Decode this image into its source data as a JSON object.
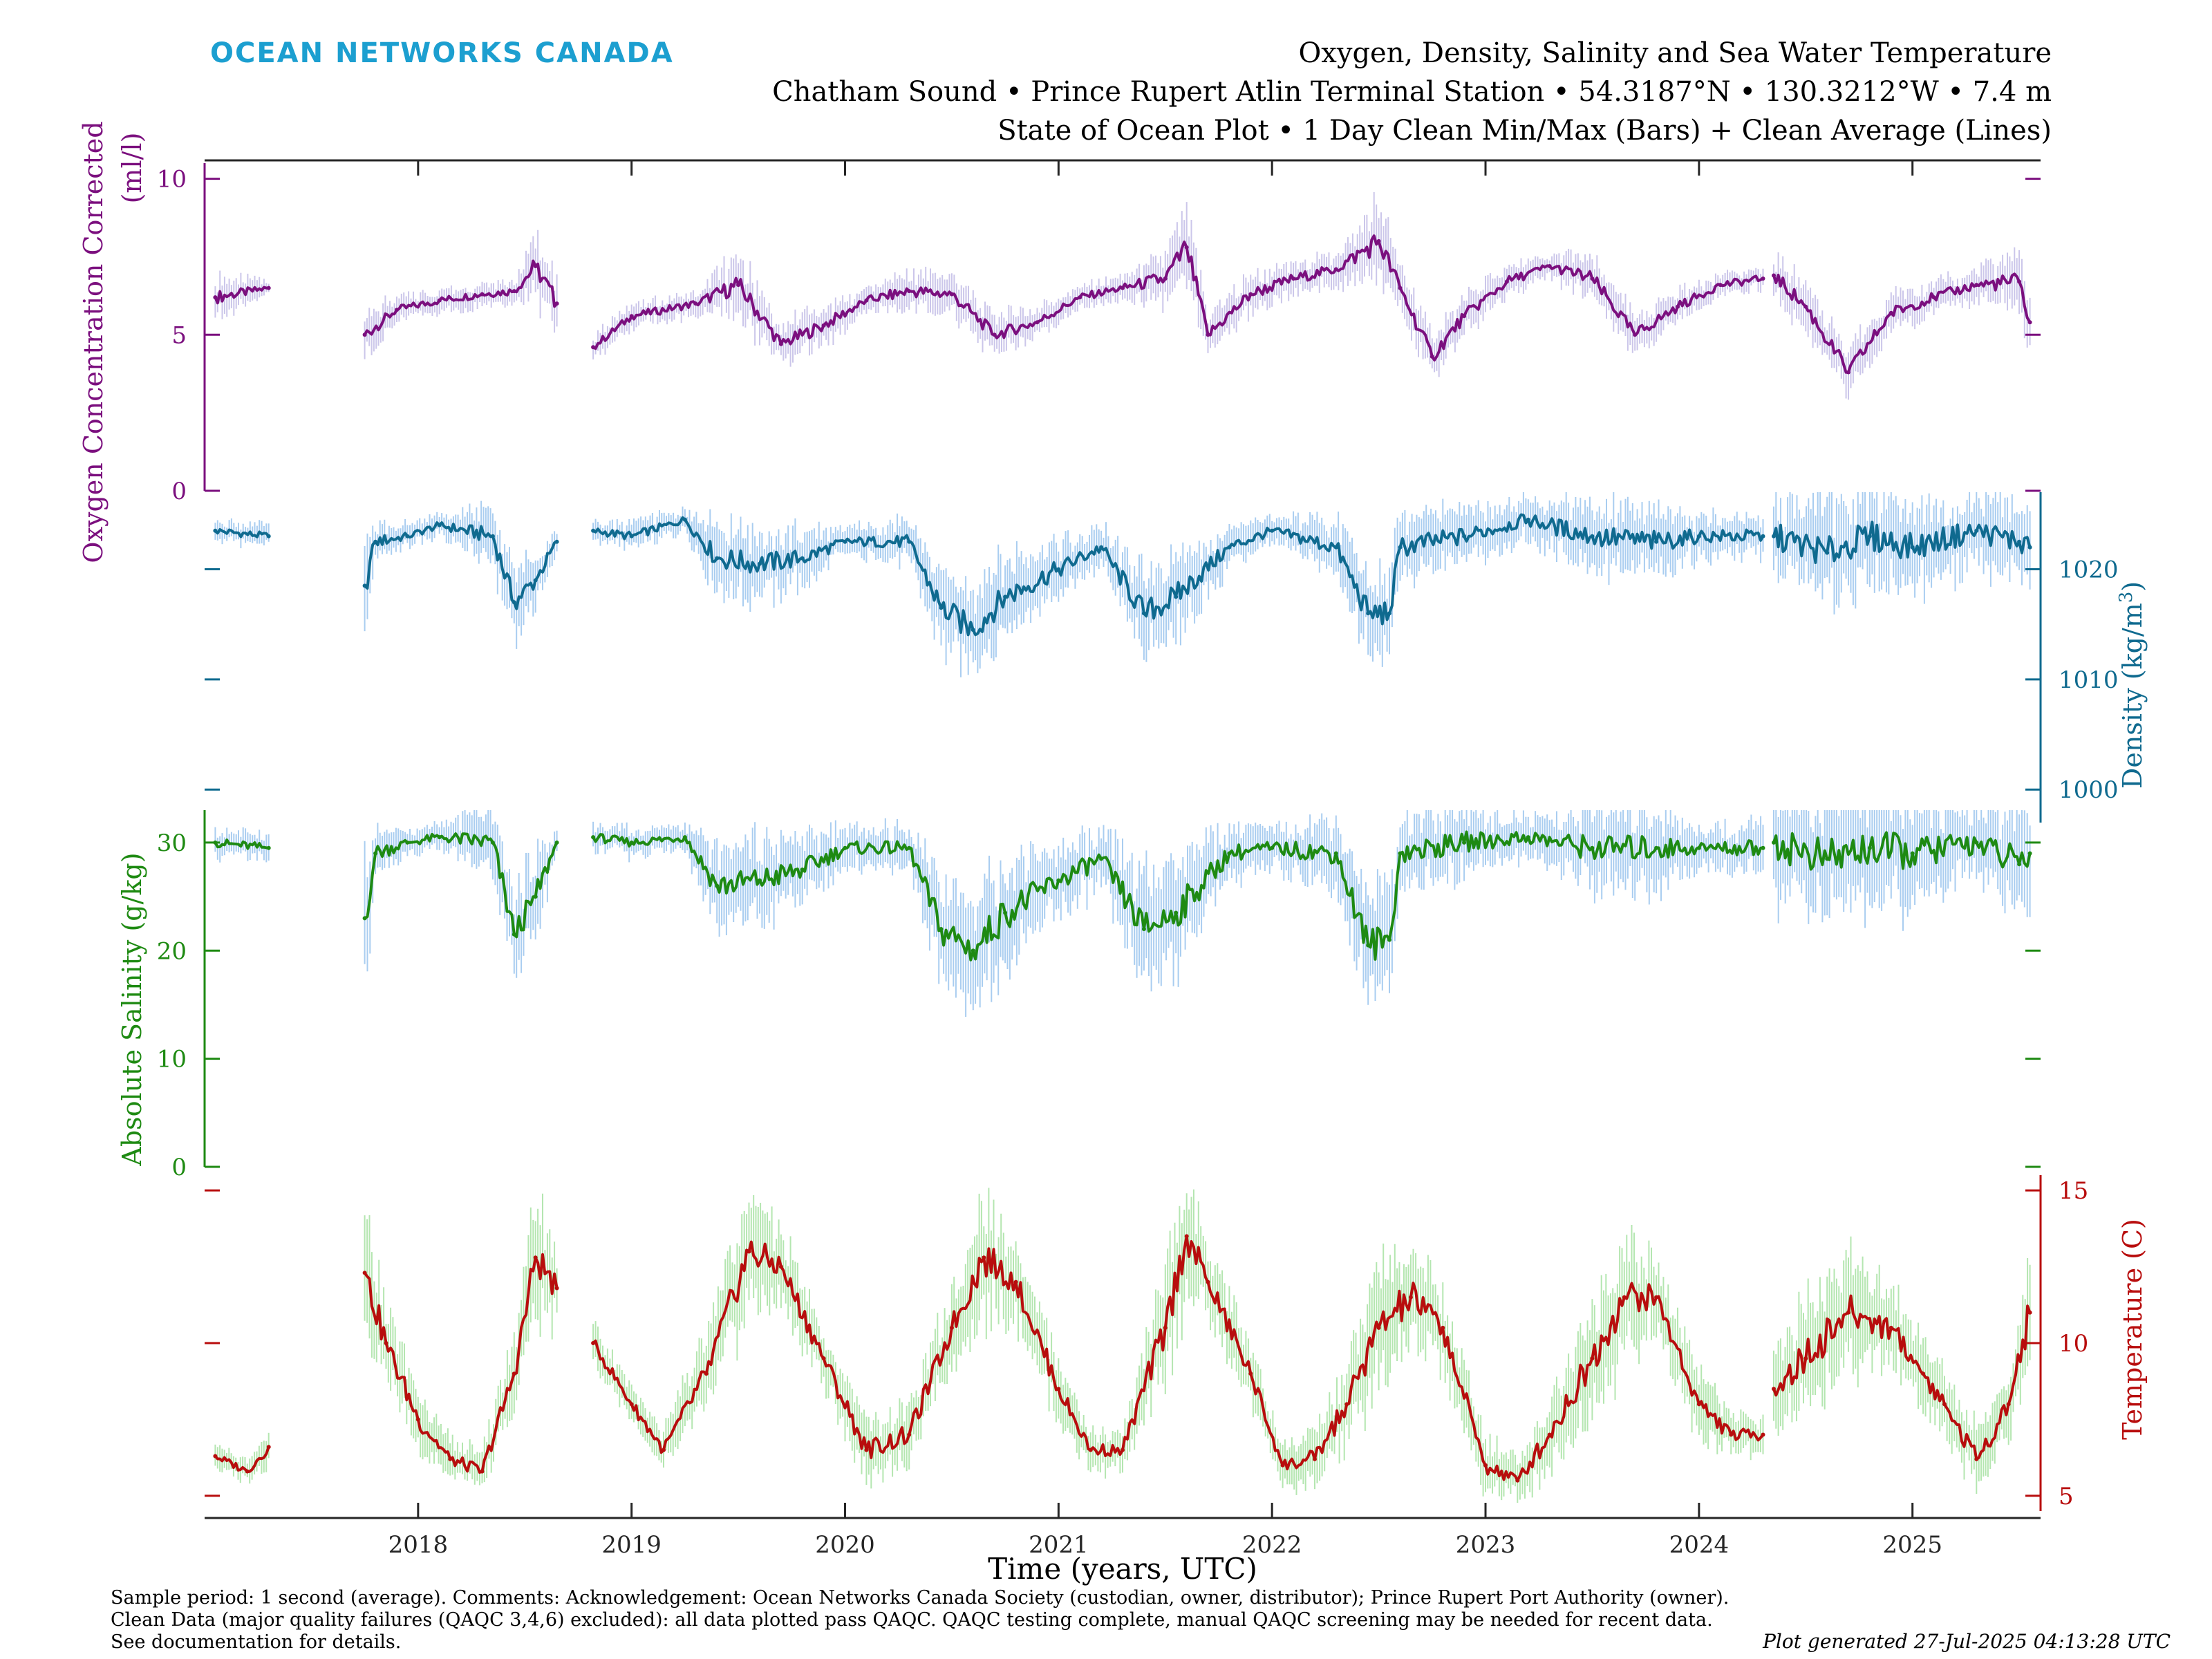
{
  "header": {
    "logo_text": "OCEAN NETWORKS CANADA",
    "title_line1": "Oxygen, Density, Salinity and Sea Water Temperature",
    "title_line2": "Chatham Sound • Prince Rupert Atlin Terminal Station • 54.3187°N • 130.3212°W • 7.4 m",
    "title_line3": "State of Ocean Plot • 1 Day Clean Min/Max (Bars) + Clean Average (Lines)"
  },
  "footer": {
    "note_line1": "Sample period: 1 second (average). Comments: Acknowledgement: Ocean Networks Canada Society (custodian, owner, distributor); Prince Rupert Port Authority (owner).",
    "note_line2": "Clean Data (major quality failures (QAQC 3,4,6) excluded): all data plotted pass QAQC. QAQC testing complete, manual QAQC screening may be needed for recent data.",
    "note_line3": "See documentation for details.",
    "generated": "Plot generated 27-Jul-2025 04:13:28 UTC"
  },
  "colors": {
    "oxygen": "#7b0f7e",
    "oxygen_band": "#cbc6ea",
    "density": "#0f6a8f",
    "density_band": "#a9cdf0",
    "salinity": "#1e8a12",
    "salinity_band": "#a9cdf0",
    "temperature": "#b80d0d",
    "temperature_band": "#b4e6b0"
  },
  "chart_data": {
    "type": "line",
    "xlabel": "Time (years, UTC)",
    "x_ticks": [
      "2018",
      "2019",
      "2020",
      "2021",
      "2022",
      "2023",
      "2024",
      "2025"
    ],
    "x_range": [
      2017.0,
      2025.6
    ],
    "gaps": [
      [
        2017.35,
        2017.75
      ],
      [
        2018.7,
        2018.82
      ],
      [
        2024.33,
        2024.35
      ]
    ],
    "series": [
      {
        "key": "oxygen",
        "name": "Oxygen Concentration Corrected",
        "ylabel": "Oxygen Concentration Corrected (ml/l)",
        "ylabel_line1": "Oxygen Concentration Corrected",
        "ylabel_line2": "(ml/l)",
        "axis": "left",
        "ylim": [
          0,
          10.5
        ],
        "ticks": [
          0,
          5,
          10
        ],
        "x": [
          2017.05,
          2017.3,
          2017.75,
          2017.9,
          2018.1,
          2018.3,
          2018.45,
          2018.55,
          2018.65,
          2018.82,
          2019.0,
          2019.3,
          2019.5,
          2019.7,
          2019.9,
          2020.1,
          2020.3,
          2020.5,
          2020.7,
          2020.9,
          2021.1,
          2021.3,
          2021.5,
          2021.6,
          2021.7,
          2021.9,
          2022.1,
          2022.3,
          2022.5,
          2022.6,
          2022.75,
          2022.9,
          2023.1,
          2023.3,
          2023.5,
          2023.7,
          2023.9,
          2024.1,
          2024.3,
          2024.35,
          2024.5,
          2024.7,
          2024.9,
          2025.1,
          2025.3,
          2025.5,
          2025.55
        ],
        "values": [
          6.2,
          6.5,
          5.0,
          5.8,
          6.1,
          6.3,
          6.4,
          7.2,
          6.0,
          4.6,
          5.6,
          6.0,
          6.6,
          4.7,
          5.3,
          6.1,
          6.4,
          6.3,
          5.0,
          5.4,
          6.2,
          6.5,
          6.8,
          7.8,
          5.0,
          6.3,
          6.8,
          7.1,
          8.0,
          6.5,
          4.3,
          5.6,
          6.7,
          7.2,
          6.8,
          5.0,
          5.9,
          6.6,
          6.8,
          6.9,
          5.9,
          3.8,
          5.7,
          6.2,
          6.6,
          6.7,
          5.4
        ],
        "band": [
          0.5,
          0.2,
          0.6,
          0.3,
          0.3,
          0.3,
          0.3,
          0.8,
          0.8,
          0.3,
          0.3,
          0.3,
          0.8,
          0.5,
          0.5,
          0.3,
          0.5,
          0.5,
          0.5,
          0.4,
          0.3,
          0.3,
          0.7,
          1.0,
          0.5,
          0.5,
          0.4,
          0.4,
          1.0,
          0.6,
          0.6,
          0.5,
          0.4,
          0.3,
          0.6,
          0.5,
          0.4,
          0.3,
          0.3,
          0.5,
          0.6,
          0.6,
          0.5,
          0.4,
          0.4,
          0.8,
          0.6
        ]
      },
      {
        "key": "density",
        "name": "Density",
        "ylabel": "Density (kg/m³)",
        "ylabel_main": "Density (kg/m",
        "ylabel_sup": "3",
        "ylabel_close": ")",
        "axis": "right",
        "ylim": [
          997,
          1027
        ],
        "ticks": [
          1000,
          1010,
          1020
        ],
        "x": [
          2017.05,
          2017.3,
          2017.75,
          2017.8,
          2017.95,
          2018.1,
          2018.35,
          2018.45,
          2018.55,
          2018.65,
          2018.82,
          2019.0,
          2019.25,
          2019.4,
          2019.6,
          2019.8,
          2020.0,
          2020.3,
          2020.45,
          2020.6,
          2020.75,
          2021.0,
          2021.2,
          2021.4,
          2021.55,
          2021.8,
          2022.0,
          2022.3,
          2022.45,
          2022.55,
          2022.6,
          2022.9,
          2023.2,
          2023.5,
          2023.8,
          2024.0,
          2024.3,
          2024.35,
          2024.6,
          2024.8,
          2025.0,
          2025.3,
          2025.5,
          2025.55
        ],
        "values": [
          1023.5,
          1023.0,
          1018.5,
          1022.5,
          1023.0,
          1024.0,
          1023.0,
          1017.0,
          1019.0,
          1022.5,
          1023.5,
          1023.0,
          1024.5,
          1021.0,
          1020.5,
          1021.0,
          1022.5,
          1022.5,
          1016.5,
          1014.5,
          1017.5,
          1020.0,
          1022.0,
          1016.0,
          1017.5,
          1022.0,
          1023.5,
          1022.0,
          1016.0,
          1016.0,
          1022.0,
          1023.0,
          1024.5,
          1023.0,
          1022.5,
          1023.0,
          1023.0,
          1023.0,
          1021.5,
          1023.0,
          1022.0,
          1023.5,
          1022.5,
          1022.0
        ],
        "band": [
          0.8,
          0.8,
          4.0,
          1.5,
          0.8,
          0.8,
          2.0,
          2.5,
          2.0,
          1.0,
          0.8,
          1.0,
          0.8,
          2.5,
          2.5,
          2.0,
          1.0,
          1.5,
          3.0,
          3.0,
          3.0,
          2.0,
          1.5,
          3.0,
          3.0,
          1.5,
          1.0,
          2.0,
          3.0,
          3.0,
          2.5,
          2.0,
          1.5,
          2.5,
          2.5,
          1.5,
          1.5,
          3.0,
          3.5,
          3.5,
          3.0,
          2.5,
          3.0,
          3.0
        ]
      },
      {
        "key": "salinity",
        "name": "Absolute Salinity",
        "ylabel": "Absolute Salinity (g/kg)",
        "axis": "left",
        "ylim": [
          0,
          33
        ],
        "ticks": [
          0,
          10,
          20,
          30
        ],
        "x": [
          2017.05,
          2017.3,
          2017.75,
          2017.8,
          2017.95,
          2018.1,
          2018.35,
          2018.45,
          2018.55,
          2018.65,
          2018.82,
          2019.0,
          2019.25,
          2019.4,
          2019.6,
          2019.8,
          2020.0,
          2020.3,
          2020.45,
          2020.6,
          2020.75,
          2021.0,
          2021.2,
          2021.4,
          2021.55,
          2021.8,
          2022.0,
          2022.3,
          2022.45,
          2022.55,
          2022.6,
          2022.9,
          2023.2,
          2023.5,
          2023.8,
          2024.0,
          2024.3,
          2024.35,
          2024.6,
          2024.8,
          2025.0,
          2025.3,
          2025.5,
          2025.55
        ],
        "values": [
          30.0,
          29.5,
          23.0,
          29.0,
          30.0,
          30.5,
          30.0,
          21.5,
          25.0,
          30.0,
          30.5,
          30.0,
          30.5,
          26.0,
          26.5,
          27.5,
          29.5,
          29.5,
          22.0,
          20.0,
          23.5,
          26.5,
          28.5,
          22.0,
          23.5,
          29.0,
          29.5,
          29.0,
          20.5,
          21.0,
          29.0,
          30.0,
          30.5,
          29.5,
          29.5,
          29.5,
          29.5,
          30.0,
          28.5,
          29.5,
          29.0,
          30.0,
          28.0,
          29.0
        ],
        "band": [
          1.0,
          1.0,
          5.0,
          2.0,
          1.0,
          1.0,
          2.5,
          3.0,
          3.0,
          1.0,
          1.0,
          1.0,
          1.0,
          3.0,
          3.0,
          2.5,
          1.5,
          1.5,
          4.0,
          4.0,
          4.0,
          2.5,
          2.0,
          4.0,
          4.0,
          2.0,
          1.5,
          2.5,
          4.0,
          4.0,
          2.5,
          2.5,
          1.5,
          3.0,
          3.0,
          1.5,
          2.0,
          4.0,
          4.5,
          4.5,
          4.0,
          2.5,
          4.0,
          4.0
        ]
      },
      {
        "key": "temperature",
        "name": "Temperature",
        "ylabel": "Temperature (C)",
        "axis": "right",
        "ylim": [
          4.5,
          15.5
        ],
        "ticks": [
          5,
          10,
          15
        ],
        "x": [
          2017.05,
          2017.2,
          2017.3,
          2017.75,
          2017.85,
          2018.0,
          2018.15,
          2018.3,
          2018.45,
          2018.55,
          2018.65,
          2018.82,
          2019.0,
          2019.15,
          2019.35,
          2019.55,
          2019.7,
          2019.9,
          2020.1,
          2020.3,
          2020.5,
          2020.65,
          2020.8,
          2021.0,
          2021.15,
          2021.3,
          2021.5,
          2021.6,
          2021.7,
          2021.9,
          2022.05,
          2022.2,
          2022.35,
          2022.5,
          2022.65,
          2022.8,
          2023.0,
          2023.15,
          2023.3,
          2023.5,
          2023.65,
          2023.8,
          2024.0,
          2024.15,
          2024.3,
          2024.35,
          2024.5,
          2024.7,
          2024.9,
          2025.05,
          2025.15,
          2025.3,
          2025.45,
          2025.55
        ],
        "values": [
          6.3,
          5.8,
          6.6,
          12.3,
          10.0,
          7.5,
          6.2,
          5.8,
          9.0,
          12.8,
          11.8,
          10.0,
          8.0,
          6.5,
          9.0,
          13.0,
          12.5,
          9.5,
          6.5,
          7.0,
          10.5,
          12.8,
          12.0,
          8.5,
          6.5,
          6.5,
          10.5,
          13.5,
          12.0,
          9.0,
          6.0,
          6.2,
          8.0,
          10.5,
          11.5,
          10.5,
          6.0,
          5.5,
          7.0,
          9.5,
          11.5,
          11.5,
          8.0,
          7.0,
          7.0,
          8.5,
          9.5,
          11.0,
          10.5,
          9.0,
          8.0,
          6.2,
          8.0,
          11.0
        ],
        "band": [
          0.3,
          0.3,
          0.5,
          1.5,
          1.0,
          0.8,
          0.5,
          0.5,
          1.0,
          1.5,
          1.0,
          0.5,
          0.5,
          0.5,
          1.0,
          1.5,
          1.0,
          0.8,
          0.8,
          0.8,
          1.0,
          1.5,
          1.0,
          0.8,
          0.5,
          0.5,
          1.5,
          1.5,
          1.0,
          0.8,
          0.5,
          0.8,
          1.0,
          1.5,
          1.5,
          1.0,
          0.8,
          0.5,
          1.0,
          1.5,
          1.5,
          1.0,
          1.0,
          0.5,
          0.5,
          1.0,
          1.5,
          1.5,
          1.0,
          1.0,
          0.8,
          0.8,
          1.0,
          1.5
        ]
      }
    ]
  }
}
